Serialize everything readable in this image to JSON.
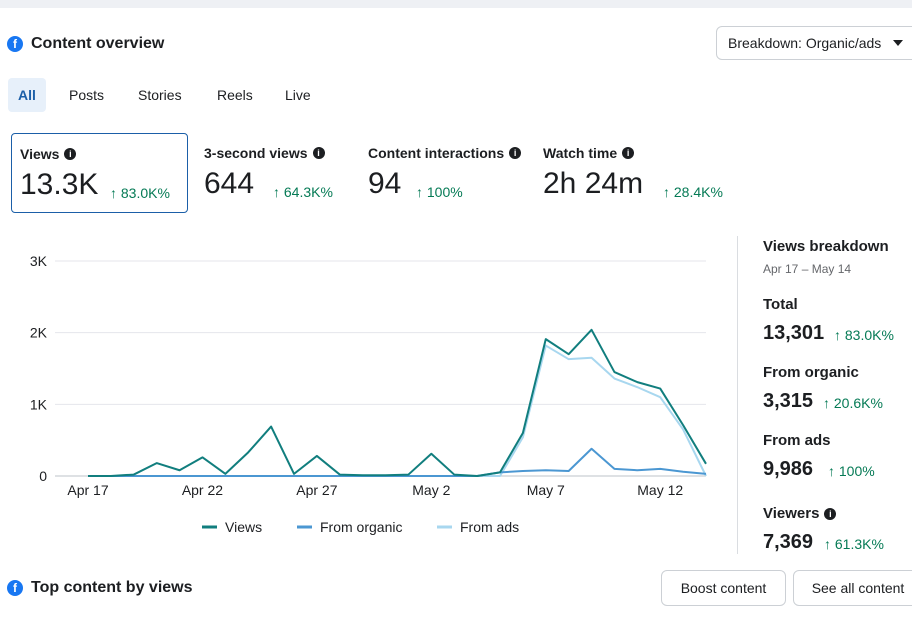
{
  "header": {
    "title": "Content overview",
    "breakdown_select": "Breakdown: Organic/ads"
  },
  "tabs": [
    {
      "label": "All",
      "active": true
    },
    {
      "label": "Posts"
    },
    {
      "label": "Stories"
    },
    {
      "label": "Reels"
    },
    {
      "label": "Live"
    }
  ],
  "metrics": [
    {
      "label": "Views",
      "value": "13.3K",
      "delta": "83.0K%",
      "selected": true
    },
    {
      "label": "3-second views",
      "value": "644",
      "delta": "64.3K%"
    },
    {
      "label": "Content interactions",
      "value": "94",
      "delta": "100%"
    },
    {
      "label": "Watch time",
      "value": "2h 24m",
      "delta": "28.4K%"
    }
  ],
  "colors": {
    "views": "#117e7e",
    "organic": "#4b97d2",
    "ads": "#a8d7ef",
    "positive": "#057a55",
    "accent": "#1877f2"
  },
  "chart_data": {
    "type": "line",
    "x": [
      "Apr 17",
      "Apr 18",
      "Apr 19",
      "Apr 20",
      "Apr 21",
      "Apr 22",
      "Apr 23",
      "Apr 24",
      "Apr 25",
      "Apr 26",
      "Apr 27",
      "Apr 28",
      "Apr 29",
      "Apr 30",
      "May 1",
      "May 2",
      "May 3",
      "May 4",
      "May 5",
      "May 6",
      "May 7",
      "May 8",
      "May 9",
      "May 10",
      "May 11",
      "May 12",
      "May 13",
      "May 14"
    ],
    "xticks": [
      "Apr 17",
      "Apr 22",
      "Apr 27",
      "May 2",
      "May 7",
      "May 12"
    ],
    "yticks": [
      "0",
      "1K",
      "2K",
      "3K"
    ],
    "ylim": [
      0,
      3000
    ],
    "grid": true,
    "legend_position": "bottom",
    "series": [
      {
        "name": "Views",
        "values": [
          0,
          0,
          20,
          180,
          80,
          260,
          30,
          330,
          690,
          30,
          280,
          20,
          10,
          10,
          20,
          310,
          20,
          0,
          50,
          600,
          1910,
          1700,
          2040,
          1450,
          1310,
          1220,
          710,
          170
        ]
      },
      {
        "name": "From organic",
        "values": [
          0,
          0,
          0,
          0,
          0,
          0,
          0,
          0,
          0,
          0,
          0,
          0,
          0,
          0,
          0,
          0,
          0,
          0,
          50,
          70,
          80,
          70,
          380,
          100,
          80,
          100,
          60,
          30
        ]
      },
      {
        "name": "From ads",
        "values": [
          0,
          0,
          0,
          0,
          0,
          0,
          0,
          0,
          0,
          0,
          0,
          0,
          0,
          0,
          0,
          0,
          0,
          0,
          0,
          540,
          1820,
          1630,
          1650,
          1360,
          1240,
          1100,
          650,
          0
        ]
      }
    ]
  },
  "breakdown": {
    "title": "Views breakdown",
    "range": "Apr 17 – May 14",
    "items": [
      {
        "label": "Total",
        "value": "13,301",
        "delta": "83.0K%"
      },
      {
        "label": "From organic",
        "value": "3,315",
        "delta": "20.6K%"
      },
      {
        "label": "From ads",
        "value": "9,986",
        "delta": "100%"
      },
      {
        "label": "Viewers",
        "value": "7,369",
        "delta": "61.3K%",
        "info": true
      }
    ]
  },
  "bottom": {
    "title": "Top content by views",
    "boost_button": "Boost content",
    "see_all_button": "See all content"
  }
}
